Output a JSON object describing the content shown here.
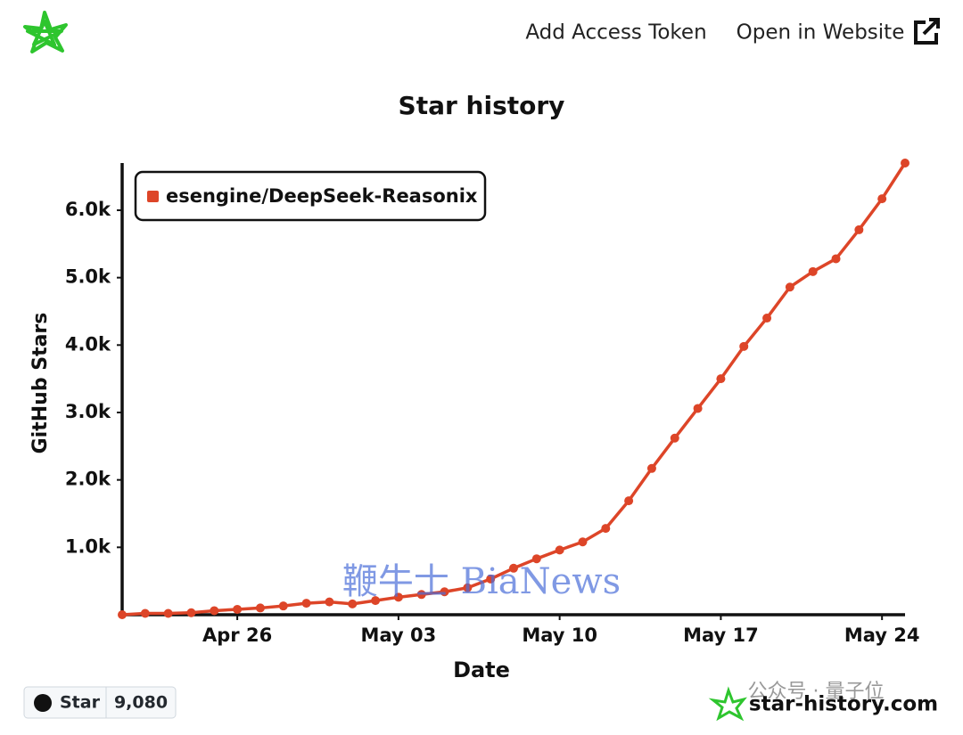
{
  "header": {
    "links": [
      "Add Access Token",
      "Open in Website"
    ]
  },
  "chart_data": {
    "type": "line",
    "title": "Star history",
    "x_label": "Date",
    "y_label": "GitHub Stars",
    "x": [
      "Apr 21",
      "Apr 22",
      "Apr 23",
      "Apr 24",
      "Apr 25",
      "Apr 26",
      "Apr 27",
      "Apr 28",
      "Apr 29",
      "Apr 30",
      "May 01",
      "May 02",
      "May 03",
      "May 04",
      "May 05",
      "May 06",
      "May 07",
      "May 08",
      "May 09",
      "May 10",
      "May 11",
      "May 12",
      "May 13",
      "May 14",
      "May 15",
      "May 16",
      "May 17",
      "May 18",
      "May 19",
      "May 20",
      "May 21",
      "May 22",
      "May 23",
      "May 24",
      "May 25"
    ],
    "series": [
      {
        "name": "esengine/DeepSeek-Reasonix",
        "color": "#dd4528",
        "values": [
          0,
          20,
          20,
          30,
          60,
          80,
          100,
          130,
          170,
          190,
          160,
          210,
          260,
          300,
          340,
          400,
          530,
          690,
          830,
          960,
          1080,
          1280,
          1690,
          2170,
          2620,
          3060,
          3500,
          3980,
          4400,
          4860,
          5090,
          5280,
          5710,
          6170,
          6700
        ]
      }
    ],
    "xlim": [
      "Apr 21",
      "May 25"
    ],
    "xticks": [
      "Apr 26",
      "May 03",
      "May 10",
      "May 17",
      "May 24"
    ],
    "ylim": [
      0,
      6700
    ],
    "yticks": [
      {
        "value": 1000,
        "label": "1.0k"
      },
      {
        "value": 2000,
        "label": "2.0k"
      },
      {
        "value": 3000,
        "label": "3.0k"
      },
      {
        "value": 4000,
        "label": "4.0k"
      },
      {
        "value": 5000,
        "label": "5.0k"
      },
      {
        "value": 6000,
        "label": "6.0k"
      }
    ],
    "legend": "top-left"
  },
  "badge": {
    "label": "Star",
    "count": "9,080"
  },
  "watermarks": [
    "鞭牛士 BiaNews",
    "公众号 · 量子位",
    "star-history.com"
  ]
}
